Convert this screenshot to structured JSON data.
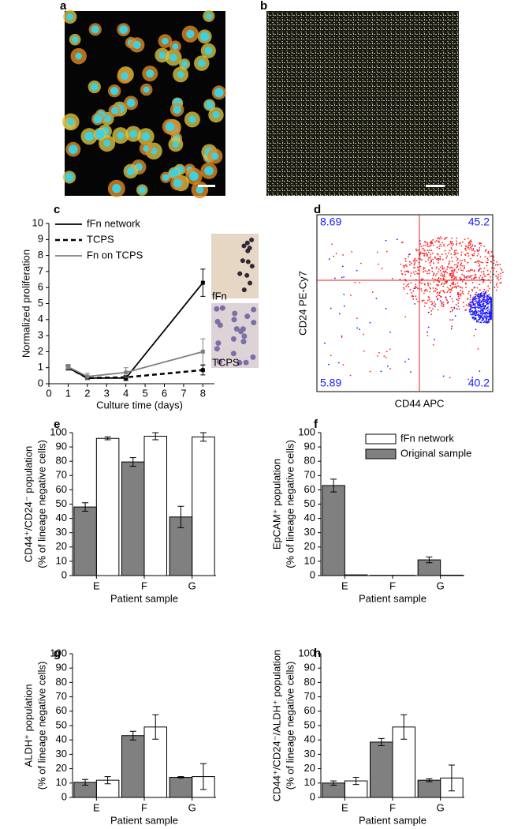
{
  "images": [
    {
      "label": "a"
    },
    {
      "label": "b"
    }
  ],
  "chart_data": [
    {
      "type": "line",
      "label": "c",
      "x_label": "Culture time (days)",
      "y_label": "Normalized proliferation",
      "x": [
        1,
        2,
        4,
        8
      ],
      "xlim": [
        0,
        8.6
      ],
      "xticks": [
        0,
        1,
        2,
        3,
        4,
        5,
        6,
        7,
        8
      ],
      "ylim": [
        0,
        10
      ],
      "yticks": [
        0,
        1,
        2,
        3,
        4,
        5,
        6,
        7,
        8,
        9,
        10
      ],
      "legend": "upper left",
      "series": [
        {
          "name": "fFn network",
          "color": "#000000",
          "dash": false,
          "values": [
            1,
            0.35,
            0.35,
            6.3
          ],
          "errors": [
            0.15,
            0.1,
            0.15,
            0.85
          ]
        },
        {
          "name": "TCPS",
          "color": "#000000",
          "dash": true,
          "values": [
            1,
            0.35,
            0.4,
            0.85
          ],
          "errors": [
            0.1,
            0.1,
            0.1,
            0.3
          ]
        },
        {
          "name": "Fn on TCPS",
          "color": "#808080",
          "dash": false,
          "values": [
            1.05,
            0.45,
            0.7,
            2.0
          ],
          "errors": [
            0.15,
            0.2,
            0.3,
            0.8
          ]
        }
      ],
      "inset_labels": [
        "fFn",
        "TCPS"
      ]
    },
    {
      "type": "flow",
      "label": "d",
      "x_label": "CD44 APC",
      "y_label": "CD24 PE-Cy7",
      "quadrant_labels": [
        "8.69",
        "45.2",
        "5.89",
        "40.2"
      ]
    },
    {
      "type": "bar",
      "label": "e",
      "x_label": "Patient sample",
      "y_label": [
        "CD44⁺/CD24⁻ population",
        "(% of lineage negative cells)"
      ],
      "categories": [
        "E",
        "F",
        "G"
      ],
      "ylim": [
        0,
        100
      ],
      "yticks": [
        0,
        10,
        20,
        30,
        40,
        50,
        60,
        70,
        80,
        90,
        100
      ],
      "series": [
        {
          "name": "fFn network",
          "color": "#ffffff",
          "values": [
            96,
            97.5,
            97
          ],
          "errors": [
            1,
            2.5,
            3
          ]
        },
        {
          "name": "Original sample",
          "color": "#808080",
          "values": [
            48,
            79.5,
            41
          ],
          "errors": [
            3,
            3,
            7.5
          ]
        }
      ]
    },
    {
      "type": "bar",
      "label": "f",
      "x_label": "Patient sample",
      "y_label": [
        "EpCAM⁺ population",
        "(% of lineage negative cells)"
      ],
      "categories": [
        "E",
        "F",
        "G"
      ],
      "ylim": [
        0,
        100
      ],
      "yticks": [
        0,
        10,
        20,
        30,
        40,
        50,
        60,
        70,
        80,
        90,
        100
      ],
      "legend": "upper right",
      "series": [
        {
          "name": "fFn network",
          "color": "#ffffff",
          "values": [
            0.5,
            0.2,
            0.3
          ],
          "errors": [
            0,
            0,
            0
          ]
        },
        {
          "name": "Original sample",
          "color": "#808080",
          "values": [
            63,
            0.2,
            11
          ],
          "errors": [
            4.5,
            0,
            2
          ]
        }
      ]
    },
    {
      "type": "bar",
      "label": "g",
      "x_label": "Patient sample",
      "y_label": [
        "ALDH⁺ population",
        "(% of lineage negative cells)"
      ],
      "categories": [
        "E",
        "F",
        "G"
      ],
      "ylim": [
        0,
        100
      ],
      "yticks": [
        0,
        10,
        20,
        30,
        40,
        50,
        60,
        70,
        80,
        90,
        100
      ],
      "series": [
        {
          "name": "fFn network",
          "color": "#ffffff",
          "values": [
            12,
            49,
            14.5
          ],
          "errors": [
            2.5,
            8.5,
            9
          ]
        },
        {
          "name": "Original sample",
          "color": "#808080",
          "values": [
            10.5,
            43,
            14
          ],
          "errors": [
            2,
            3,
            0.5
          ]
        }
      ]
    },
    {
      "type": "bar",
      "label": "h",
      "x_label": "Patient sample",
      "y_label": [
        "CD44⁺/CD24⁻/ALDH⁺ population",
        "(% of lineage negative cells)"
      ],
      "categories": [
        "E",
        "F",
        "G"
      ],
      "ylim": [
        0,
        100
      ],
      "yticks": [
        0,
        10,
        20,
        30,
        40,
        50,
        60,
        70,
        80,
        90,
        100
      ],
      "series": [
        {
          "name": "fFn network",
          "color": "#ffffff",
          "values": [
            11.5,
            49,
            13.5
          ],
          "errors": [
            2.5,
            8.5,
            9
          ]
        },
        {
          "name": "Original sample",
          "color": "#808080",
          "values": [
            10,
            38.5,
            12
          ],
          "errors": [
            1.5,
            2.5,
            1
          ]
        }
      ]
    }
  ]
}
